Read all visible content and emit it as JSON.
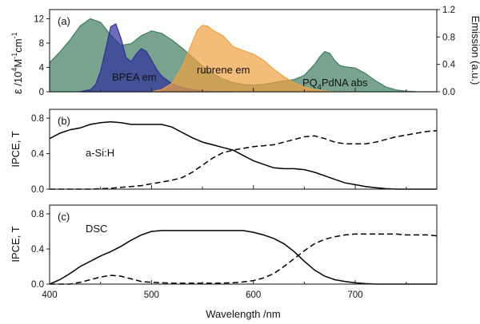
{
  "colors": {
    "pq4pdna_abs": "#3f7e5f",
    "bpea_em": "#2e2e9a",
    "rubrene_em": "#f0a040",
    "solid_line": "#000000",
    "dashed_line": "#000000"
  },
  "x_axis": {
    "label": "Wavelength /nm",
    "range": [
      400,
      780
    ],
    "ticks": [
      400,
      500,
      600,
      700
    ],
    "tick_labels": [
      "400",
      "500",
      "600",
      "700"
    ]
  },
  "chart_data": [
    {
      "type": "area",
      "panel_label": "(a)",
      "ylabel": "ε /10⁴M⁻¹cm⁻¹",
      "ylabel_parts": {
        "epsilon": "ε",
        "mid": " /10",
        "exp1": "4",
        "unit": "M",
        "exp2": "-1",
        "tail": "cm",
        "exp3": "-1"
      },
      "ylim": [
        0,
        13.5
      ],
      "yticks": [
        0,
        4,
        8,
        12
      ],
      "ytick_labels": [
        "0",
        "4",
        "8",
        "12"
      ],
      "ylabel_right": "Emission (a.u.)",
      "ylim_right": [
        0,
        1.2
      ],
      "yticks_right": [
        0,
        0.4,
        0.8,
        1.2
      ],
      "ytick_labels_right": [
        "0.0",
        "0.4",
        "0.8",
        "1.2"
      ],
      "series": [
        {
          "key": "pq4pdna_abs",
          "name": "PQ₄PdNA abs",
          "name_parts": {
            "a": "PQ",
            "sub": "4",
            "b": "PdNA abs"
          },
          "axis": "left",
          "x": [
            400,
            410,
            420,
            430,
            440,
            450,
            460,
            470,
            480,
            490,
            500,
            510,
            520,
            530,
            540,
            550,
            560,
            570,
            580,
            590,
            600,
            610,
            620,
            630,
            640,
            650,
            660,
            665,
            670,
            675,
            680,
            685,
            690,
            700,
            710,
            720,
            730,
            740,
            750,
            760,
            770,
            780
          ],
          "y": [
            4.8,
            6.5,
            8.5,
            10.8,
            12.0,
            11.4,
            9.3,
            7.6,
            7.9,
            9.2,
            10.0,
            9.6,
            8.5,
            7.2,
            5.7,
            4.2,
            3.0,
            2.1,
            1.5,
            1.2,
            1.1,
            1.2,
            1.5,
            1.8,
            2.0,
            2.7,
            4.5,
            5.7,
            6.6,
            6.3,
            5.1,
            4.3,
            4.1,
            3.9,
            3.0,
            1.8,
            0.8,
            0.3,
            0.1,
            0.02,
            0.0,
            0.0
          ]
        },
        {
          "key": "bpea_em",
          "name": "BPEA em",
          "axis": "right",
          "x": [
            430,
            440,
            445,
            450,
            455,
            460,
            465,
            470,
            475,
            480,
            485,
            490,
            495,
            500,
            505,
            510,
            520,
            530,
            540,
            550,
            560,
            580
          ],
          "y": [
            0.0,
            0.03,
            0.1,
            0.3,
            0.62,
            0.95,
            0.99,
            0.78,
            0.5,
            0.44,
            0.55,
            0.63,
            0.59,
            0.46,
            0.33,
            0.23,
            0.12,
            0.06,
            0.03,
            0.01,
            0.0,
            0.0
          ]
        },
        {
          "key": "rubrene_em",
          "name": "rubrene em",
          "axis": "right",
          "x": [
            500,
            510,
            520,
            530,
            540,
            545,
            550,
            555,
            560,
            570,
            580,
            590,
            600,
            610,
            620,
            630,
            640,
            650,
            660,
            670,
            680,
            690
          ],
          "y": [
            0.0,
            0.03,
            0.12,
            0.36,
            0.72,
            0.9,
            0.97,
            0.96,
            0.9,
            0.82,
            0.66,
            0.6,
            0.55,
            0.46,
            0.33,
            0.22,
            0.13,
            0.07,
            0.03,
            0.01,
            0.0,
            0.0
          ]
        }
      ]
    },
    {
      "type": "line",
      "panel_label": "(b)",
      "annotation": "a-Si:H",
      "ylabel": "IPCE, T",
      "ylim": [
        0,
        0.9
      ],
      "yticks": [
        0.0,
        0.4,
        0.8
      ],
      "ytick_labels": [
        "0.0",
        "0.4",
        "0.8"
      ],
      "series": [
        {
          "key": "ipce",
          "style": "solid",
          "x": [
            400,
            410,
            420,
            430,
            440,
            450,
            460,
            470,
            480,
            490,
            500,
            510,
            520,
            530,
            540,
            550,
            560,
            570,
            580,
            590,
            600,
            610,
            620,
            630,
            640,
            650,
            660,
            670,
            680,
            690,
            700,
            710,
            720,
            730,
            740,
            750,
            760,
            770,
            780
          ],
          "y": [
            0.57,
            0.63,
            0.67,
            0.69,
            0.73,
            0.75,
            0.76,
            0.75,
            0.73,
            0.73,
            0.73,
            0.73,
            0.7,
            0.64,
            0.58,
            0.53,
            0.5,
            0.47,
            0.44,
            0.38,
            0.32,
            0.28,
            0.24,
            0.23,
            0.23,
            0.22,
            0.19,
            0.15,
            0.11,
            0.07,
            0.05,
            0.03,
            0.015,
            0.005,
            0.0,
            0.0,
            0.0,
            0.0,
            0.0
          ]
        },
        {
          "key": "transmission",
          "style": "dashed",
          "x": [
            400,
            420,
            440,
            460,
            470,
            480,
            490,
            500,
            510,
            520,
            530,
            540,
            550,
            560,
            570,
            580,
            590,
            600,
            610,
            620,
            630,
            640,
            650,
            660,
            670,
            680,
            690,
            700,
            710,
            720,
            730,
            740,
            750,
            760,
            770,
            780
          ],
          "y": [
            0.0,
            0.0,
            0.0,
            0.01,
            0.02,
            0.03,
            0.04,
            0.06,
            0.08,
            0.1,
            0.13,
            0.19,
            0.27,
            0.35,
            0.41,
            0.44,
            0.46,
            0.48,
            0.49,
            0.5,
            0.53,
            0.56,
            0.59,
            0.6,
            0.57,
            0.53,
            0.51,
            0.51,
            0.51,
            0.53,
            0.56,
            0.59,
            0.61,
            0.63,
            0.65,
            0.66
          ]
        }
      ]
    },
    {
      "type": "line",
      "panel_label": "(c)",
      "annotation": "DSC",
      "ylabel": "IPCE, T",
      "ylim": [
        0,
        0.9
      ],
      "yticks": [
        0.0,
        0.4,
        0.8
      ],
      "ytick_labels": [
        "0.0",
        "0.4",
        "0.8"
      ],
      "series": [
        {
          "key": "ipce",
          "style": "solid",
          "x": [
            400,
            410,
            420,
            430,
            440,
            450,
            460,
            470,
            480,
            490,
            500,
            510,
            520,
            530,
            540,
            550,
            560,
            570,
            580,
            590,
            600,
            610,
            620,
            630,
            640,
            650,
            660,
            670,
            680,
            690,
            700,
            710,
            720,
            740,
            760,
            780
          ],
          "y": [
            0.0,
            0.05,
            0.12,
            0.2,
            0.26,
            0.32,
            0.37,
            0.43,
            0.5,
            0.56,
            0.6,
            0.61,
            0.61,
            0.61,
            0.61,
            0.61,
            0.61,
            0.61,
            0.61,
            0.61,
            0.59,
            0.56,
            0.52,
            0.46,
            0.37,
            0.26,
            0.16,
            0.09,
            0.05,
            0.03,
            0.015,
            0.005,
            0.0,
            0.0,
            0.0,
            0.0
          ]
        },
        {
          "key": "transmission",
          "style": "dashed",
          "x": [
            400,
            420,
            430,
            440,
            450,
            460,
            470,
            480,
            490,
            500,
            520,
            540,
            560,
            580,
            590,
            600,
            610,
            620,
            630,
            640,
            650,
            660,
            670,
            680,
            690,
            700,
            710,
            720,
            730,
            740,
            750,
            760,
            770,
            780
          ],
          "y": [
            0.0,
            0.0,
            0.02,
            0.05,
            0.08,
            0.1,
            0.09,
            0.06,
            0.03,
            0.02,
            0.01,
            0.01,
            0.01,
            0.015,
            0.025,
            0.04,
            0.07,
            0.12,
            0.2,
            0.29,
            0.38,
            0.46,
            0.51,
            0.54,
            0.56,
            0.57,
            0.57,
            0.57,
            0.57,
            0.57,
            0.56,
            0.56,
            0.56,
            0.55
          ]
        }
      ]
    }
  ]
}
